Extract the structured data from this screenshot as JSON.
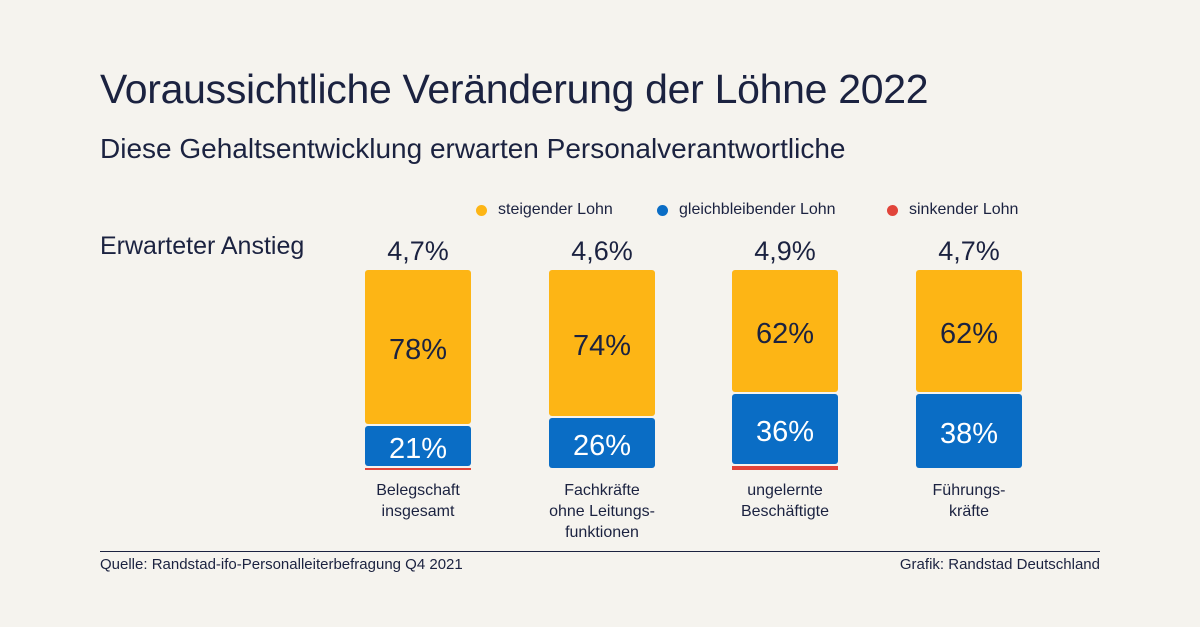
{
  "title": "Voraussichtliche Veränderung der Löhne 2022",
  "subtitle": "Diese Gehaltsentwicklung erwarten Personalverantwortliche",
  "row_label": "Erwarteter Anstieg",
  "colors": {
    "rising": "#fdb515",
    "constant": "#0a6dc5",
    "falling": "#e1443a",
    "text": "#1b2240"
  },
  "chart_data": {
    "type": "bar",
    "stacked": true,
    "title": "Voraussichtliche Veränderung der Löhne 2022",
    "subtitle": "Diese Gehaltsentwicklung erwarten Personalverantwortliche",
    "categories": [
      [
        "Belegschaft",
        "insgesamt"
      ],
      [
        "Fachkräfte",
        "ohne Leitungs-",
        "funktionen"
      ],
      [
        "ungelernte",
        "Beschäftigte"
      ],
      [
        "Führungs-",
        "kräfte"
      ]
    ],
    "expected_increase": [
      "4,7%",
      "4,6%",
      "4,9%",
      "4,7%"
    ],
    "series": [
      {
        "name": "steigender Lohn",
        "values": [
          78,
          74,
          62,
          62
        ],
        "labels": [
          "78%",
          "74%",
          "62%",
          "62%"
        ]
      },
      {
        "name": "gleichbleibender Lohn",
        "values": [
          21,
          26,
          36,
          38
        ],
        "labels": [
          "21%",
          "26%",
          "36%",
          "38%"
        ]
      },
      {
        "name": "sinkender Lohn",
        "values": [
          1,
          0,
          2,
          0
        ],
        "labels": [
          "",
          "",
          "",
          ""
        ]
      }
    ],
    "unit": "%",
    "legend_position": "top"
  },
  "footer": {
    "source": "Quelle: Randstad-ifo-Personalleiterbefragung Q4 2021",
    "credit": "Grafik: Randstad Deutschland"
  }
}
